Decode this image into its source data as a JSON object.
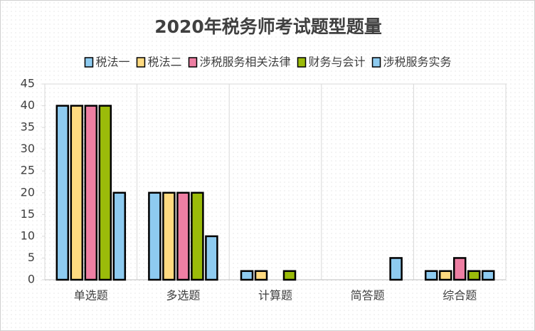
{
  "chart_data": {
    "type": "bar",
    "title": "2020年税务师考试题型题量",
    "categories": [
      "单选题",
      "多选题",
      "计算题",
      "简答题",
      "综合题"
    ],
    "series": [
      {
        "name": "税法一",
        "color": "#8ECBF0",
        "values": [
          40,
          20,
          2,
          0,
          2
        ]
      },
      {
        "name": "税法二",
        "color": "#FFDA80",
        "values": [
          40,
          20,
          2,
          0,
          2
        ]
      },
      {
        "name": "涉税服务相关法律",
        "color": "#EE7FA3",
        "values": [
          40,
          20,
          0,
          0,
          5
        ]
      },
      {
        "name": "财务与会计",
        "color": "#9BBB0A",
        "values": [
          40,
          20,
          2,
          0,
          2
        ]
      },
      {
        "name": "涉税服务实务",
        "color": "#8ECBF0",
        "values": [
          20,
          10,
          0,
          5,
          2
        ]
      }
    ],
    "ylim": [
      0,
      45
    ],
    "yticks": [
      0,
      5,
      10,
      15,
      20,
      25,
      30,
      35,
      40,
      45
    ],
    "legend": "top"
  }
}
